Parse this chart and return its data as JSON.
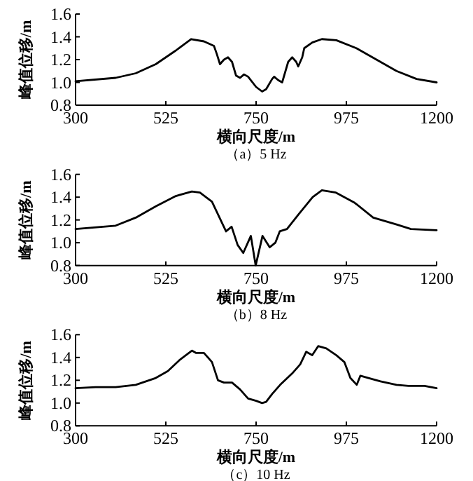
{
  "chart_data": [
    {
      "type": "line",
      "title": "（a）5 Hz",
      "xlabel": "横向尺度/m",
      "ylabel": "峰值位移/m",
      "xlim": [
        300,
        1200
      ],
      "ylim": [
        0.8,
        1.6
      ],
      "xticks": [
        300,
        525,
        750,
        975,
        1200
      ],
      "yticks": [
        {
          "value": 0.8,
          "label": "0.8"
        },
        {
          "value": 1.0,
          "label": "1.0"
        },
        {
          "value": 1.2,
          "label": "1.2"
        },
        {
          "value": 1.4,
          "label": "1.4"
        },
        {
          "value": 1.6,
          "label": "1.6"
        }
      ],
      "x": [
        300,
        400,
        450,
        500,
        550,
        588,
        620,
        645,
        652,
        660,
        670,
        680,
        690,
        700,
        710,
        720,
        730,
        750,
        765,
        775,
        790,
        795,
        805,
        815,
        820,
        830,
        840,
        850,
        855,
        865,
        870,
        890,
        914,
        950,
        1000,
        1050,
        1100,
        1150,
        1200
      ],
      "series": [
        {
          "color": "#000000",
          "values": [
            1.01,
            1.04,
            1.08,
            1.16,
            1.28,
            1.38,
            1.36,
            1.32,
            1.25,
            1.16,
            1.2,
            1.22,
            1.18,
            1.06,
            1.04,
            1.07,
            1.05,
            0.96,
            0.92,
            0.94,
            1.03,
            1.05,
            1.02,
            1.0,
            1.06,
            1.18,
            1.22,
            1.18,
            1.14,
            1.22,
            1.3,
            1.35,
            1.38,
            1.37,
            1.3,
            1.2,
            1.1,
            1.03,
            1.0
          ]
        }
      ]
    },
    {
      "type": "line",
      "title": "（b）8 Hz",
      "xlabel": "横向尺度/m",
      "ylabel": "峰值位移/m",
      "xlim": [
        300,
        1200
      ],
      "ylim": [
        0.8,
        1.6
      ],
      "xticks": [
        300,
        525,
        750,
        975,
        1200
      ],
      "yticks": [
        {
          "value": 0.8,
          "label": "0.8"
        },
        {
          "value": 1.0,
          "label": "1.0"
        },
        {
          "value": 1.2,
          "label": "1.2"
        },
        {
          "value": 1.4,
          "label": "1.4"
        },
        {
          "value": 1.6,
          "label": "1.6"
        }
      ],
      "x": [
        300,
        400,
        450,
        500,
        550,
        590,
        610,
        640,
        675,
        689,
        704,
        718,
        737,
        749,
        766,
        784,
        798,
        809,
        827,
        856,
        891,
        914,
        949,
        996,
        1042,
        1100,
        1136,
        1200
      ],
      "series": [
        {
          "color": "#000000",
          "values": [
            1.12,
            1.15,
            1.22,
            1.32,
            1.41,
            1.45,
            1.44,
            1.36,
            1.1,
            1.14,
            0.98,
            0.91,
            1.06,
            0.8,
            1.06,
            0.96,
            1.0,
            1.1,
            1.12,
            1.25,
            1.4,
            1.46,
            1.44,
            1.35,
            1.22,
            1.16,
            1.12,
            1.11
          ]
        }
      ]
    },
    {
      "type": "line",
      "title": "（c）10 Hz",
      "xlabel": "横向尺度/m",
      "ylabel": "峰值位移/m",
      "xlim": [
        300,
        1200
      ],
      "ylim": [
        0.8,
        1.6
      ],
      "xticks": [
        300,
        525,
        750,
        975,
        1200
      ],
      "yticks": [
        {
          "value": 0.8,
          "label": "0.8"
        },
        {
          "value": 1.0,
          "label": "1.0"
        },
        {
          "value": 1.2,
          "label": "1.2"
        },
        {
          "value": 1.4,
          "label": "1.4"
        },
        {
          "value": 1.6,
          "label": "1.6"
        }
      ],
      "x": [
        300,
        350,
        400,
        450,
        500,
        530,
        560,
        590,
        600,
        620,
        640,
        655,
        670,
        690,
        710,
        730,
        750,
        765,
        775,
        790,
        810,
        840,
        860,
        875,
        890,
        905,
        925,
        950,
        970,
        985,
        1001,
        1010,
        1030,
        1060,
        1100,
        1130,
        1170,
        1200
      ],
      "series": [
        {
          "color": "#000000",
          "values": [
            1.13,
            1.14,
            1.14,
            1.16,
            1.22,
            1.28,
            1.38,
            1.46,
            1.44,
            1.44,
            1.36,
            1.2,
            1.18,
            1.18,
            1.12,
            1.04,
            1.02,
            1.0,
            1.01,
            1.08,
            1.16,
            1.26,
            1.34,
            1.45,
            1.42,
            1.5,
            1.48,
            1.42,
            1.36,
            1.22,
            1.16,
            1.24,
            1.22,
            1.19,
            1.16,
            1.15,
            1.15,
            1.13
          ]
        }
      ]
    }
  ]
}
